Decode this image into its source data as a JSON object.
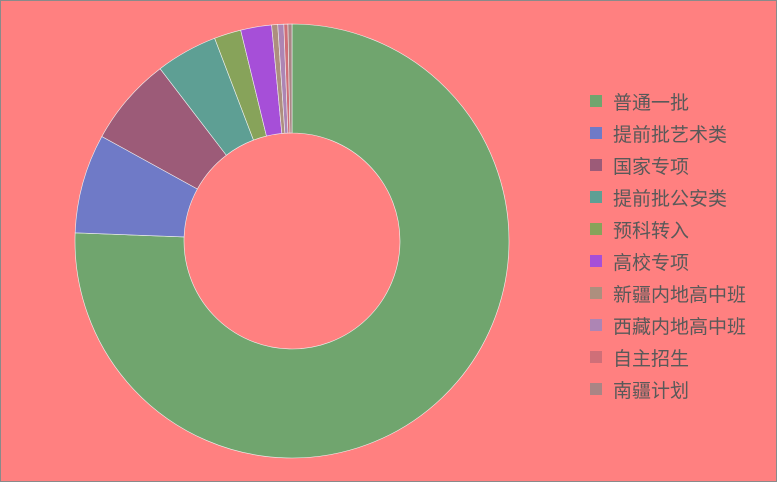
{
  "background": "#ff8080",
  "chart_data": {
    "type": "pie",
    "style": "donut",
    "title": "",
    "legend_position": "right",
    "categories": [
      "普通一批",
      "提前批艺术类",
      "国家专项",
      "提前批公安类",
      "预科转入",
      "高校专项",
      "新疆内地高中班",
      "西藏内地高中班",
      "自主招生",
      "南疆计划"
    ],
    "values": [
      75.6,
      7.4,
      6.6,
      4.6,
      2.0,
      2.3,
      0.45,
      0.45,
      0.3,
      0.3
    ],
    "colors": [
      "#70a56e",
      "#6f7ac7",
      "#9c5b78",
      "#5e9f94",
      "#87a35a",
      "#a64fd8",
      "#ad8f7e",
      "#ad85b4",
      "#cf6f78",
      "#a98585"
    ]
  }
}
